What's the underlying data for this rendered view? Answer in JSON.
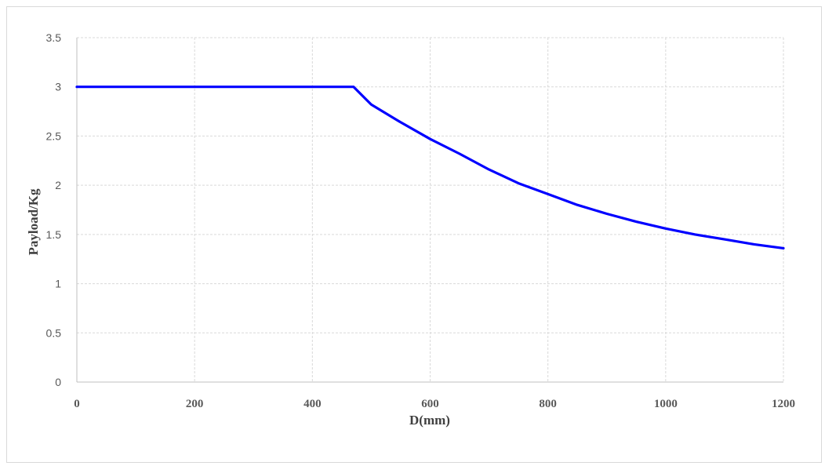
{
  "chart_data": {
    "type": "line",
    "title": "",
    "xlabel": "D(mm)",
    "ylabel": "Payload/Kg",
    "xlim": [
      0,
      1200
    ],
    "ylim": [
      0,
      3.5
    ],
    "x_ticks": [
      0,
      200,
      400,
      600,
      800,
      1000,
      1200
    ],
    "y_ticks": [
      0,
      0.5,
      1,
      1.5,
      2,
      2.5,
      3,
      3.5
    ],
    "x_tick_labels": [
      "0",
      "200",
      "400",
      "600",
      "800",
      "1000",
      "1200"
    ],
    "y_tick_labels": [
      "0",
      "0.5",
      "1",
      "1.5",
      "2",
      "2.5",
      "3",
      "3.5"
    ],
    "grid": true,
    "legend": "none",
    "series": [
      {
        "color": "#0000ff",
        "x": [
          0,
          100,
          200,
          300,
          400,
          470,
          500,
          550,
          600,
          650,
          700,
          750,
          800,
          850,
          900,
          950,
          1000,
          1050,
          1100,
          1150,
          1200
        ],
        "y": [
          3,
          3,
          3,
          3,
          3,
          3,
          2.82,
          2.64,
          2.47,
          2.32,
          2.16,
          2.02,
          1.91,
          1.8,
          1.71,
          1.63,
          1.56,
          1.5,
          1.45,
          1.4,
          1.36
        ]
      }
    ]
  }
}
